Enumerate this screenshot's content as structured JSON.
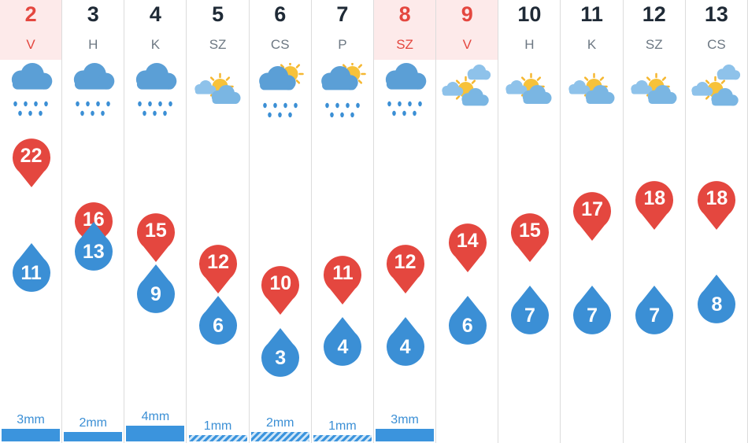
{
  "days": [
    {
      "day": "2",
      "name": "V",
      "weekend": true,
      "icon": "rain-cloud-icon",
      "high": 22,
      "low": 11,
      "precip": "3mm",
      "precip_amount": 3,
      "precip_style": "solid"
    },
    {
      "day": "3",
      "name": "H",
      "weekend": false,
      "icon": "rain-cloud-icon",
      "high": 16,
      "low": 13,
      "precip": "2mm",
      "precip_amount": 2,
      "precip_style": "solid"
    },
    {
      "day": "4",
      "name": "K",
      "weekend": false,
      "icon": "rain-cloud-icon",
      "high": 15,
      "low": 9,
      "precip": "4mm",
      "precip_amount": 4,
      "precip_style": "solid"
    },
    {
      "day": "5",
      "name": "SZ",
      "weekend": false,
      "icon": "partly-cloudy-icon",
      "high": 12,
      "low": 6,
      "precip": "1mm",
      "precip_amount": 1,
      "precip_style": "hatched"
    },
    {
      "day": "6",
      "name": "CS",
      "weekend": false,
      "icon": "sun-cloud-rain-icon",
      "high": 10,
      "low": 3,
      "precip": "2mm",
      "precip_amount": 2,
      "precip_style": "hatched"
    },
    {
      "day": "7",
      "name": "P",
      "weekend": false,
      "icon": "sun-cloud-rain-icon",
      "high": 11,
      "low": 4,
      "precip": "1mm",
      "precip_amount": 1,
      "precip_style": "hatched"
    },
    {
      "day": "8",
      "name": "SZ",
      "weekend": true,
      "icon": "rain-cloud-icon",
      "high": 12,
      "low": 4,
      "precip": "3mm",
      "precip_amount": 3,
      "precip_style": "solid"
    },
    {
      "day": "9",
      "name": "V",
      "weekend": true,
      "icon": "mostly-cloudy-sun-icon",
      "high": 14,
      "low": 6,
      "precip": "",
      "precip_amount": 0,
      "precip_style": "none"
    },
    {
      "day": "10",
      "name": "H",
      "weekend": false,
      "icon": "partly-cloudy-icon",
      "high": 15,
      "low": 7,
      "precip": "",
      "precip_amount": 0,
      "precip_style": "none"
    },
    {
      "day": "11",
      "name": "K",
      "weekend": false,
      "icon": "partly-cloudy-icon",
      "high": 17,
      "low": 7,
      "precip": "",
      "precip_amount": 0,
      "precip_style": "none"
    },
    {
      "day": "12",
      "name": "SZ",
      "weekend": false,
      "icon": "partly-cloudy-icon",
      "high": 18,
      "low": 7,
      "precip": "",
      "precip_amount": 0,
      "precip_style": "none"
    },
    {
      "day": "13",
      "name": "CS",
      "weekend": false,
      "icon": "mostly-cloudy-sun-icon",
      "high": 18,
      "low": 8,
      "precip": "",
      "precip_amount": 0,
      "precip_style": "none"
    }
  ],
  "colors": {
    "high_marker": "#e4473f",
    "low_marker": "#3b8fd5",
    "weekend_header_bg": "#fdeaea",
    "weekend_text": "#e4473f",
    "precip_bar": "#3b94dd"
  }
}
